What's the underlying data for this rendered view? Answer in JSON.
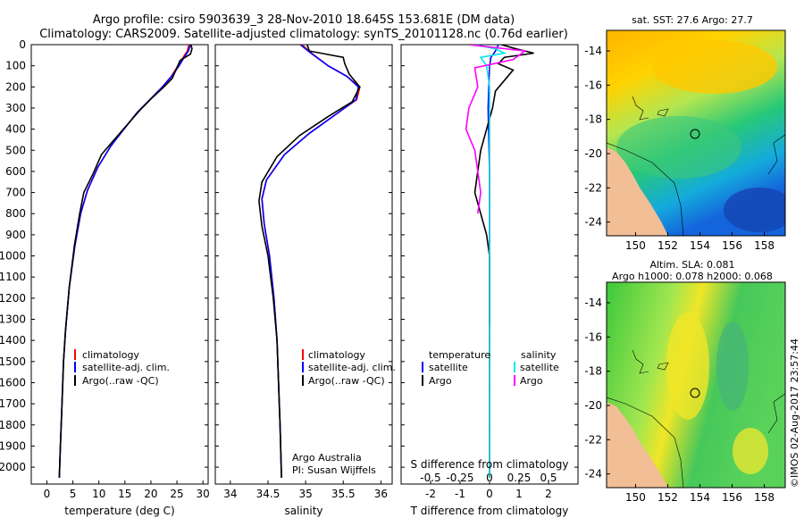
{
  "header": {
    "line1": "Argo profile: csiro 5903639_3 28-Nov-2010 18.645S 153.681E (DM data)",
    "line2": "Climatology: CARS2009. Satellite-adjusted climatology: synTS_20101128.nc (0.76d earlier)"
  },
  "credit": {
    "line1": "Argo Australia",
    "line2": "PI: Susan Wijffels"
  },
  "stamp": "©IMOS 02-Aug-2017 23:57:44",
  "colors": {
    "climatology": "#ff0000",
    "satellite": "#0000ff",
    "argo": "#000000",
    "salinity_satellite": "#00e5ee",
    "salinity_argo": "#ff00ff",
    "land": "#f2be96"
  },
  "chart_data": [
    {
      "type": "line",
      "id": "temperature",
      "xlabel": "temperature (deg C)",
      "ylabel": "",
      "xlim": [
        -3,
        31
      ],
      "ylim": [
        2080,
        0
      ],
      "xticks": [
        0,
        5,
        10,
        15,
        20,
        25,
        30
      ],
      "yticks": [
        0,
        100,
        200,
        300,
        400,
        500,
        600,
        700,
        800,
        900,
        1000,
        1100,
        1200,
        1300,
        1400,
        1500,
        1600,
        1700,
        1800,
        1900,
        2000
      ],
      "legend": {
        "placement": "center-right",
        "entries": [
          "climatology",
          "satellite-adj. clim.",
          "Argo(..raw -QC)"
        ]
      },
      "series": [
        {
          "name": "climatology",
          "color": "#ff0000",
          "points": [
            [
              27.3,
              0
            ],
            [
              27.0,
              30
            ],
            [
              26.2,
              60
            ],
            [
              25.2,
              100
            ],
            [
              23.9,
              150
            ],
            [
              22.2,
              200
            ],
            [
              19.8,
              260
            ],
            [
              17.4,
              320
            ],
            [
              14.8,
              400
            ],
            [
              12.3,
              480
            ],
            [
              9.8,
              580
            ],
            [
              7.8,
              690
            ],
            [
              6.5,
              800
            ],
            [
              5.4,
              950
            ],
            [
              4.3,
              1150
            ],
            [
              3.6,
              1350
            ],
            [
              3.2,
              1500
            ],
            [
              2.9,
              1700
            ],
            [
              2.6,
              1900
            ],
            [
              2.4,
              2050
            ]
          ]
        },
        {
          "name": "satellite-adj. clim.",
          "color": "#0000ff",
          "points": [
            [
              27.6,
              0
            ],
            [
              27.2,
              30
            ],
            [
              26.4,
              60
            ],
            [
              25.4,
              100
            ],
            [
              24.0,
              150
            ],
            [
              22.2,
              200
            ],
            [
              19.8,
              260
            ],
            [
              17.4,
              320
            ],
            [
              14.8,
              400
            ],
            [
              12.3,
              480
            ],
            [
              9.8,
              580
            ],
            [
              7.8,
              690
            ],
            [
              6.5,
              800
            ],
            [
              5.4,
              950
            ],
            [
              4.3,
              1150
            ],
            [
              3.6,
              1350
            ],
            [
              3.2,
              1500
            ],
            [
              2.9,
              1700
            ],
            [
              2.6,
              1900
            ],
            [
              2.4,
              2050
            ]
          ]
        },
        {
          "name": "Argo(..raw -QC)",
          "color": "#000000",
          "points": [
            [
              27.7,
              0
            ],
            [
              27.9,
              20
            ],
            [
              27.6,
              45
            ],
            [
              25.6,
              75
            ],
            [
              24.8,
              120
            ],
            [
              24.1,
              160
            ],
            [
              22.5,
              200
            ],
            [
              20.3,
              250
            ],
            [
              17.9,
              310
            ],
            [
              15.4,
              380
            ],
            [
              12.6,
              460
            ],
            [
              10.5,
              520
            ],
            [
              8.9,
              610
            ],
            [
              7.1,
              700
            ],
            [
              6.3,
              800
            ],
            [
              5.3,
              950
            ],
            [
              4.3,
              1150
            ],
            [
              3.6,
              1350
            ],
            [
              3.2,
              1500
            ],
            [
              2.9,
              1700
            ],
            [
              2.6,
              1900
            ],
            [
              2.4,
              2050
            ]
          ]
        }
      ]
    },
    {
      "type": "line",
      "id": "salinity",
      "xlabel": "salinity",
      "ylabel": "",
      "xlim": [
        33.8,
        36.15
      ],
      "ylim": [
        2080,
        0
      ],
      "xticks": [
        34,
        34.5,
        35,
        35.5,
        36
      ],
      "xtick_labels": [
        "34",
        "34.5",
        "35",
        "35.5",
        "36"
      ],
      "legend": {
        "placement": "center-right",
        "entries": [
          "climatology",
          "satellite-adj. clim.",
          "Argo(..raw -QC)"
        ]
      },
      "series": [
        {
          "name": "climatology",
          "color": "#ff0000",
          "points": [
            [
              34.95,
              0
            ],
            [
              35.08,
              40
            ],
            [
              35.3,
              100
            ],
            [
              35.55,
              150
            ],
            [
              35.72,
              200
            ],
            [
              35.68,
              260
            ],
            [
              35.4,
              330
            ],
            [
              35.05,
              420
            ],
            [
              34.72,
              520
            ],
            [
              34.48,
              640
            ],
            [
              34.42,
              730
            ],
            [
              34.45,
              850
            ],
            [
              34.52,
              1000
            ],
            [
              34.58,
              1200
            ],
            [
              34.62,
              1400
            ],
            [
              34.64,
              1600
            ],
            [
              34.66,
              1800
            ],
            [
              34.68,
              2050
            ]
          ]
        },
        {
          "name": "satellite-adj. clim.",
          "color": "#0000ff",
          "points": [
            [
              34.93,
              0
            ],
            [
              35.07,
              40
            ],
            [
              35.3,
              100
            ],
            [
              35.55,
              150
            ],
            [
              35.7,
              200
            ],
            [
              35.67,
              260
            ],
            [
              35.4,
              330
            ],
            [
              35.05,
              420
            ],
            [
              34.72,
              520
            ],
            [
              34.48,
              640
            ],
            [
              34.42,
              730
            ],
            [
              34.45,
              850
            ],
            [
              34.52,
              1000
            ],
            [
              34.58,
              1200
            ],
            [
              34.62,
              1400
            ],
            [
              34.64,
              1600
            ],
            [
              34.66,
              1800
            ],
            [
              34.68,
              2050
            ]
          ]
        },
        {
          "name": "Argo(..raw -QC)",
          "color": "#000000",
          "points": [
            [
              35.02,
              0
            ],
            [
              35.05,
              30
            ],
            [
              35.5,
              60
            ],
            [
              35.52,
              90
            ],
            [
              35.58,
              140
            ],
            [
              35.72,
              200
            ],
            [
              35.62,
              270
            ],
            [
              35.3,
              340
            ],
            [
              34.92,
              430
            ],
            [
              34.62,
              530
            ],
            [
              34.42,
              650
            ],
            [
              34.38,
              740
            ],
            [
              34.42,
              860
            ],
            [
              34.5,
              1000
            ],
            [
              34.57,
              1200
            ],
            [
              34.62,
              1400
            ],
            [
              34.64,
              1600
            ],
            [
              34.66,
              1800
            ],
            [
              34.68,
              2050
            ]
          ]
        }
      ]
    },
    {
      "type": "line",
      "id": "difference",
      "xlabel": "T difference from climatology",
      "xlabel_top": "S difference from climatology",
      "xlim": [
        -3,
        3
      ],
      "ylim": [
        2080,
        0
      ],
      "xticks": [
        -2,
        -1,
        0,
        1,
        2
      ],
      "xtick_labels": [
        "-2",
        "-1",
        "0",
        "1",
        "2"
      ],
      "s_xticks": [
        -2,
        -1,
        0,
        1,
        2
      ],
      "s_xtick_labels": [
        "-0.5",
        "-0.25",
        "0",
        "0.25",
        "0.5"
      ],
      "legend": {
        "placement": "center",
        "temperature_header": "temperature",
        "salinity_header": "salinity",
        "entries": [
          "satellite",
          "Argo",
          "satellite",
          "Argo"
        ]
      },
      "series": [
        {
          "name": "temperature satellite",
          "color": "#0000ff",
          "points": [
            [
              0.3,
              0
            ],
            [
              0.2,
              30
            ],
            [
              0.05,
              60
            ],
            [
              0.0,
              100
            ],
            [
              -0.05,
              300
            ],
            [
              0,
              600
            ],
            [
              0,
              900
            ],
            [
              0,
              1200
            ],
            [
              0,
              1330
            ]
          ]
        },
        {
          "name": "temperature Argo",
          "color": "#000000",
          "points": [
            [
              0.4,
              0
            ],
            [
              0.9,
              20
            ],
            [
              1.5,
              40
            ],
            [
              0.5,
              60
            ],
            [
              0.3,
              90
            ],
            [
              0.8,
              120
            ],
            [
              0.5,
              170
            ],
            [
              0.2,
              220
            ],
            [
              0.1,
              300
            ],
            [
              -0.3,
              500
            ],
            [
              -0.4,
              600
            ],
            [
              -0.5,
              700
            ],
            [
              -0.3,
              800
            ],
            [
              -0.1,
              900
            ],
            [
              0,
              1000
            ],
            [
              0,
              1300
            ],
            [
              0,
              1700
            ],
            [
              0,
              1900
            ],
            [
              0,
              2050
            ]
          ]
        },
        {
          "name": "salinity satellite",
          "color": "#00e5ee",
          "points": [
            [
              -0.5,
              0
            ],
            [
              0.2,
              20
            ],
            [
              0.5,
              40
            ],
            [
              -0.3,
              60
            ],
            [
              -0.1,
              100
            ],
            [
              0.0,
              200
            ],
            [
              0.0,
              400
            ],
            [
              0.0,
              800
            ],
            [
              0.0,
              1200
            ],
            [
              0.0,
              1600
            ],
            [
              0.0,
              2050
            ]
          ]
        },
        {
          "name": "salinity Argo",
          "color": "#ff00ff",
          "points": [
            [
              -0.7,
              0
            ],
            [
              1.2,
              30
            ],
            [
              1.0,
              50
            ],
            [
              0.8,
              70
            ],
            [
              -0.5,
              110
            ],
            [
              -0.4,
              200
            ],
            [
              -0.7,
              300
            ],
            [
              -0.8,
              400
            ],
            [
              -0.5,
              500
            ],
            [
              -0.4,
              600
            ],
            [
              -0.3,
              700
            ],
            [
              -0.4,
              800
            ]
          ]
        }
      ]
    },
    {
      "type": "heatmap",
      "id": "sst-map",
      "title": "sat. SST: 27.6 Argo: 27.7",
      "xlim": [
        148.2,
        159.3
      ],
      "ylim": [
        -24.8,
        -12.8
      ],
      "xticks": [
        150,
        152,
        154,
        156,
        158
      ],
      "yticks": [
        -14,
        -16,
        -18,
        -20,
        -22,
        -24
      ],
      "marker": {
        "lon": 153.681,
        "lat": -18.645
      }
    },
    {
      "type": "heatmap",
      "id": "sla-map",
      "title_line1": "Altim. SLA: 0.081",
      "title_line2": "Argo h1000: 0.078 h2000: 0.068",
      "xlim": [
        148.2,
        159.3
      ],
      "ylim": [
        -24.8,
        -12.8
      ],
      "xticks": [
        150,
        152,
        154,
        156,
        158
      ],
      "yticks": [
        -14,
        -16,
        -18,
        -20,
        -22,
        -24
      ],
      "marker": {
        "lon": 153.681,
        "lat": -18.645
      }
    }
  ]
}
